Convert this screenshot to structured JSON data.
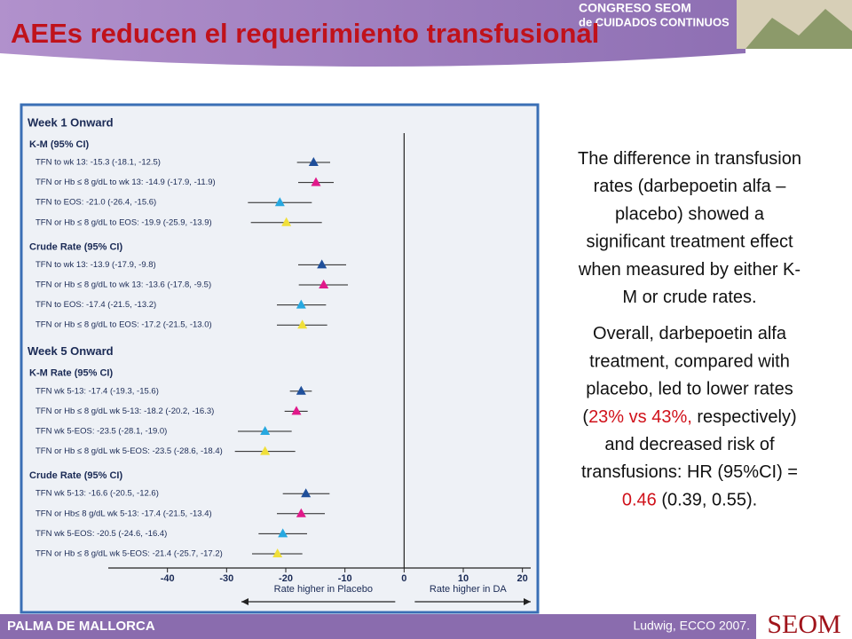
{
  "header": {
    "title": "AEEs  reducen el requerimiento transfusional",
    "logo_lines": [
      "CONGRESO SEOM",
      "de CUIDADOS CONTINUOS"
    ]
  },
  "chart_data": {
    "type": "forest",
    "xlim": [
      -50,
      21.4
    ],
    "xticks": [
      -40,
      -30,
      -20,
      -10,
      0,
      10,
      20
    ],
    "x_label_left": "Rate higher in Placebo",
    "x_label_right": "Rate higher in DA",
    "colors": [
      "#1f4f9a",
      "#e0198a",
      "#27a8e0",
      "#f0df3a"
    ],
    "sections": [
      {
        "title": "Week 1 Onward",
        "groups": [
          {
            "title": "K-M (95% CI)",
            "rows": [
              {
                "label": "TFN to wk 13: -15.3 (-18.1, -12.5)",
                "value": -15.3,
                "ci": [
                  -18.1,
                  -12.5
                ]
              },
              {
                "label": "TFN or Hb ≤ 8 g/dL to wk 13: -14.9 (-17.9, -11.9)",
                "value": -14.9,
                "ci": [
                  -17.9,
                  -11.9
                ]
              },
              {
                "label": "TFN to EOS: -21.0 (-26.4, -15.6)",
                "value": -21.0,
                "ci": [
                  -26.4,
                  -15.6
                ]
              },
              {
                "label": "TFN or Hb ≤ 8 g/dL to EOS: -19.9 (-25.9, -13.9)",
                "value": -19.9,
                "ci": [
                  -25.9,
                  -13.9
                ]
              }
            ]
          },
          {
            "title": "Crude Rate (95% CI)",
            "rows": [
              {
                "label": "TFN to wk 13: -13.9 (-17.9, -9.8)",
                "value": -13.9,
                "ci": [
                  -17.9,
                  -9.8
                ]
              },
              {
                "label": "TFN or Hb ≤ 8 g/dL to wk 13: -13.6 (-17.8, -9.5)",
                "value": -13.6,
                "ci": [
                  -17.8,
                  -9.5
                ]
              },
              {
                "label": "TFN to EOS: -17.4 (-21.5, -13.2)",
                "value": -17.4,
                "ci": [
                  -21.5,
                  -13.2
                ]
              },
              {
                "label": "TFN or Hb ≤ 8 g/dL to EOS: -17.2 (-21.5, -13.0)",
                "value": -17.2,
                "ci": [
                  -21.5,
                  -13.0
                ]
              }
            ]
          }
        ]
      },
      {
        "title": "Week 5 Onward",
        "groups": [
          {
            "title": "K-M Rate (95% CI)",
            "rows": [
              {
                "label": "TFN wk 5-13: -17.4 (-19.3, -15.6)",
                "value": -17.4,
                "ci": [
                  -19.3,
                  -15.6
                ]
              },
              {
                "label": "TFN or Hb ≤ 8 g/dL wk 5-13: -18.2 (-20.2, -16.3)",
                "value": -18.2,
                "ci": [
                  -20.2,
                  -16.3
                ]
              },
              {
                "label": "TFN wk 5-EOS: -23.5 (-28.1, -19.0)",
                "value": -23.5,
                "ci": [
                  -28.1,
                  -19.0
                ]
              },
              {
                "label": "TFN or Hb ≤ 8 g/dL wk 5-EOS: -23.5 (-28.6, -18.4)",
                "value": -23.5,
                "ci": [
                  -28.6,
                  -18.4
                ]
              }
            ]
          },
          {
            "title": "Crude Rate (95% CI)",
            "rows": [
              {
                "label": "TFN wk 5-13: -16.6 (-20.5, -12.6)",
                "value": -16.6,
                "ci": [
                  -20.5,
                  -12.6
                ]
              },
              {
                "label": "TFN or Hb≤ 8 g/dL wk 5-13: -17.4 (-21.5, -13.4)",
                "value": -17.4,
                "ci": [
                  -21.5,
                  -13.4
                ]
              },
              {
                "label": "TFN wk 5-EOS: -20.5 (-24.6, -16.4)",
                "value": -20.5,
                "ci": [
                  -24.6,
                  -16.4
                ]
              },
              {
                "label": "TFN or Hb ≤ 8 g/dL wk 5-EOS: -21.4 (-25.7, -17.2)",
                "value": -21.4,
                "ci": [
                  -25.7,
                  -17.2
                ]
              }
            ]
          }
        ]
      }
    ]
  },
  "text": {
    "paragraphs": [
      [
        [
          {
            "text": "The difference in transfusion"
          }
        ],
        [
          {
            "text": "rates (darbepoetin alfa –"
          }
        ],
        [
          {
            "text": "placebo) showed a"
          }
        ],
        [
          {
            "text": "significant treatment effect"
          }
        ],
        [
          {
            "text": "when measured by either K-"
          }
        ],
        [
          {
            "text": "M or crude rates."
          }
        ]
      ],
      [
        [
          {
            "text": "Overall, darbepoetin alfa"
          }
        ],
        [
          {
            "text": "treatment, compared with"
          }
        ],
        [
          {
            "text": "placebo, led to lower rates"
          }
        ],
        [
          {
            "text": "("
          },
          {
            "text": "23% vs 43%,",
            "color": "#d0121b"
          },
          {
            "text": " respectively)"
          }
        ],
        [
          {
            "text": "and decreased risk of"
          }
        ],
        [
          {
            "text": "transfusions: HR (95%CI) ="
          }
        ],
        [
          {
            "text": "0.46",
            "color": "#d0121b"
          },
          {
            "text": " (0.39, 0.55)."
          }
        ]
      ]
    ]
  },
  "footer": {
    "location": "PALMA DE MALLORCA",
    "citation": "Ludwig, ECCO 2007.",
    "logo": "SEOM"
  }
}
